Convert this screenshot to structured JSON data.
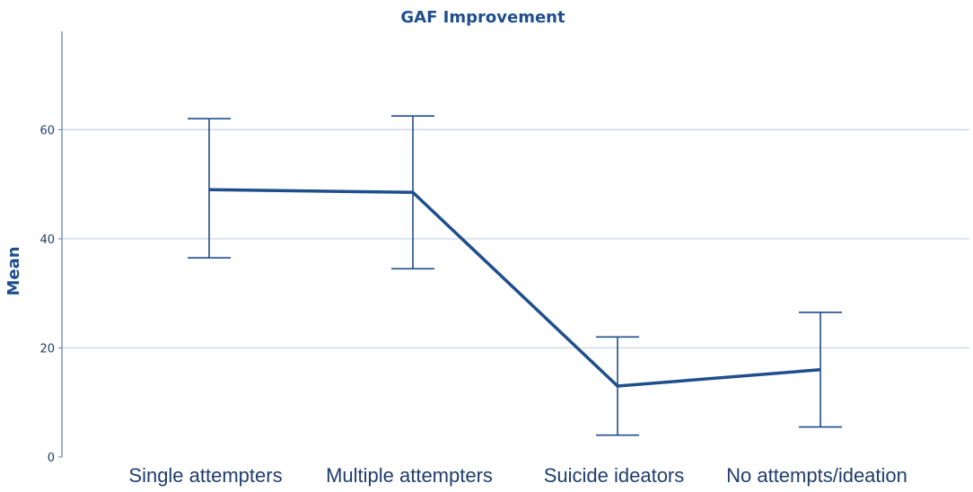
{
  "chart_data": {
    "type": "line",
    "title": "GAF Improvement",
    "xlabel": "",
    "ylabel": "Mean",
    "categories": [
      "Single attempters",
      "Multiple attempters",
      "Suicide ideators",
      "No attempts/ideation"
    ],
    "series": [
      {
        "values": [
          49,
          48.5,
          13,
          16
        ],
        "error_low": [
          36.5,
          34.5,
          4,
          5.5
        ],
        "error_high": [
          62,
          62.5,
          22,
          26.5
        ]
      }
    ],
    "ylim": [
      0,
      78
    ],
    "yticks": [
      "0",
      "20",
      "40",
      "60"
    ],
    "grid": true,
    "legend": "none",
    "colors": {
      "line": "#1f4e8c",
      "grid": "#c5d3e3",
      "axis": "#5b7fae"
    }
  }
}
